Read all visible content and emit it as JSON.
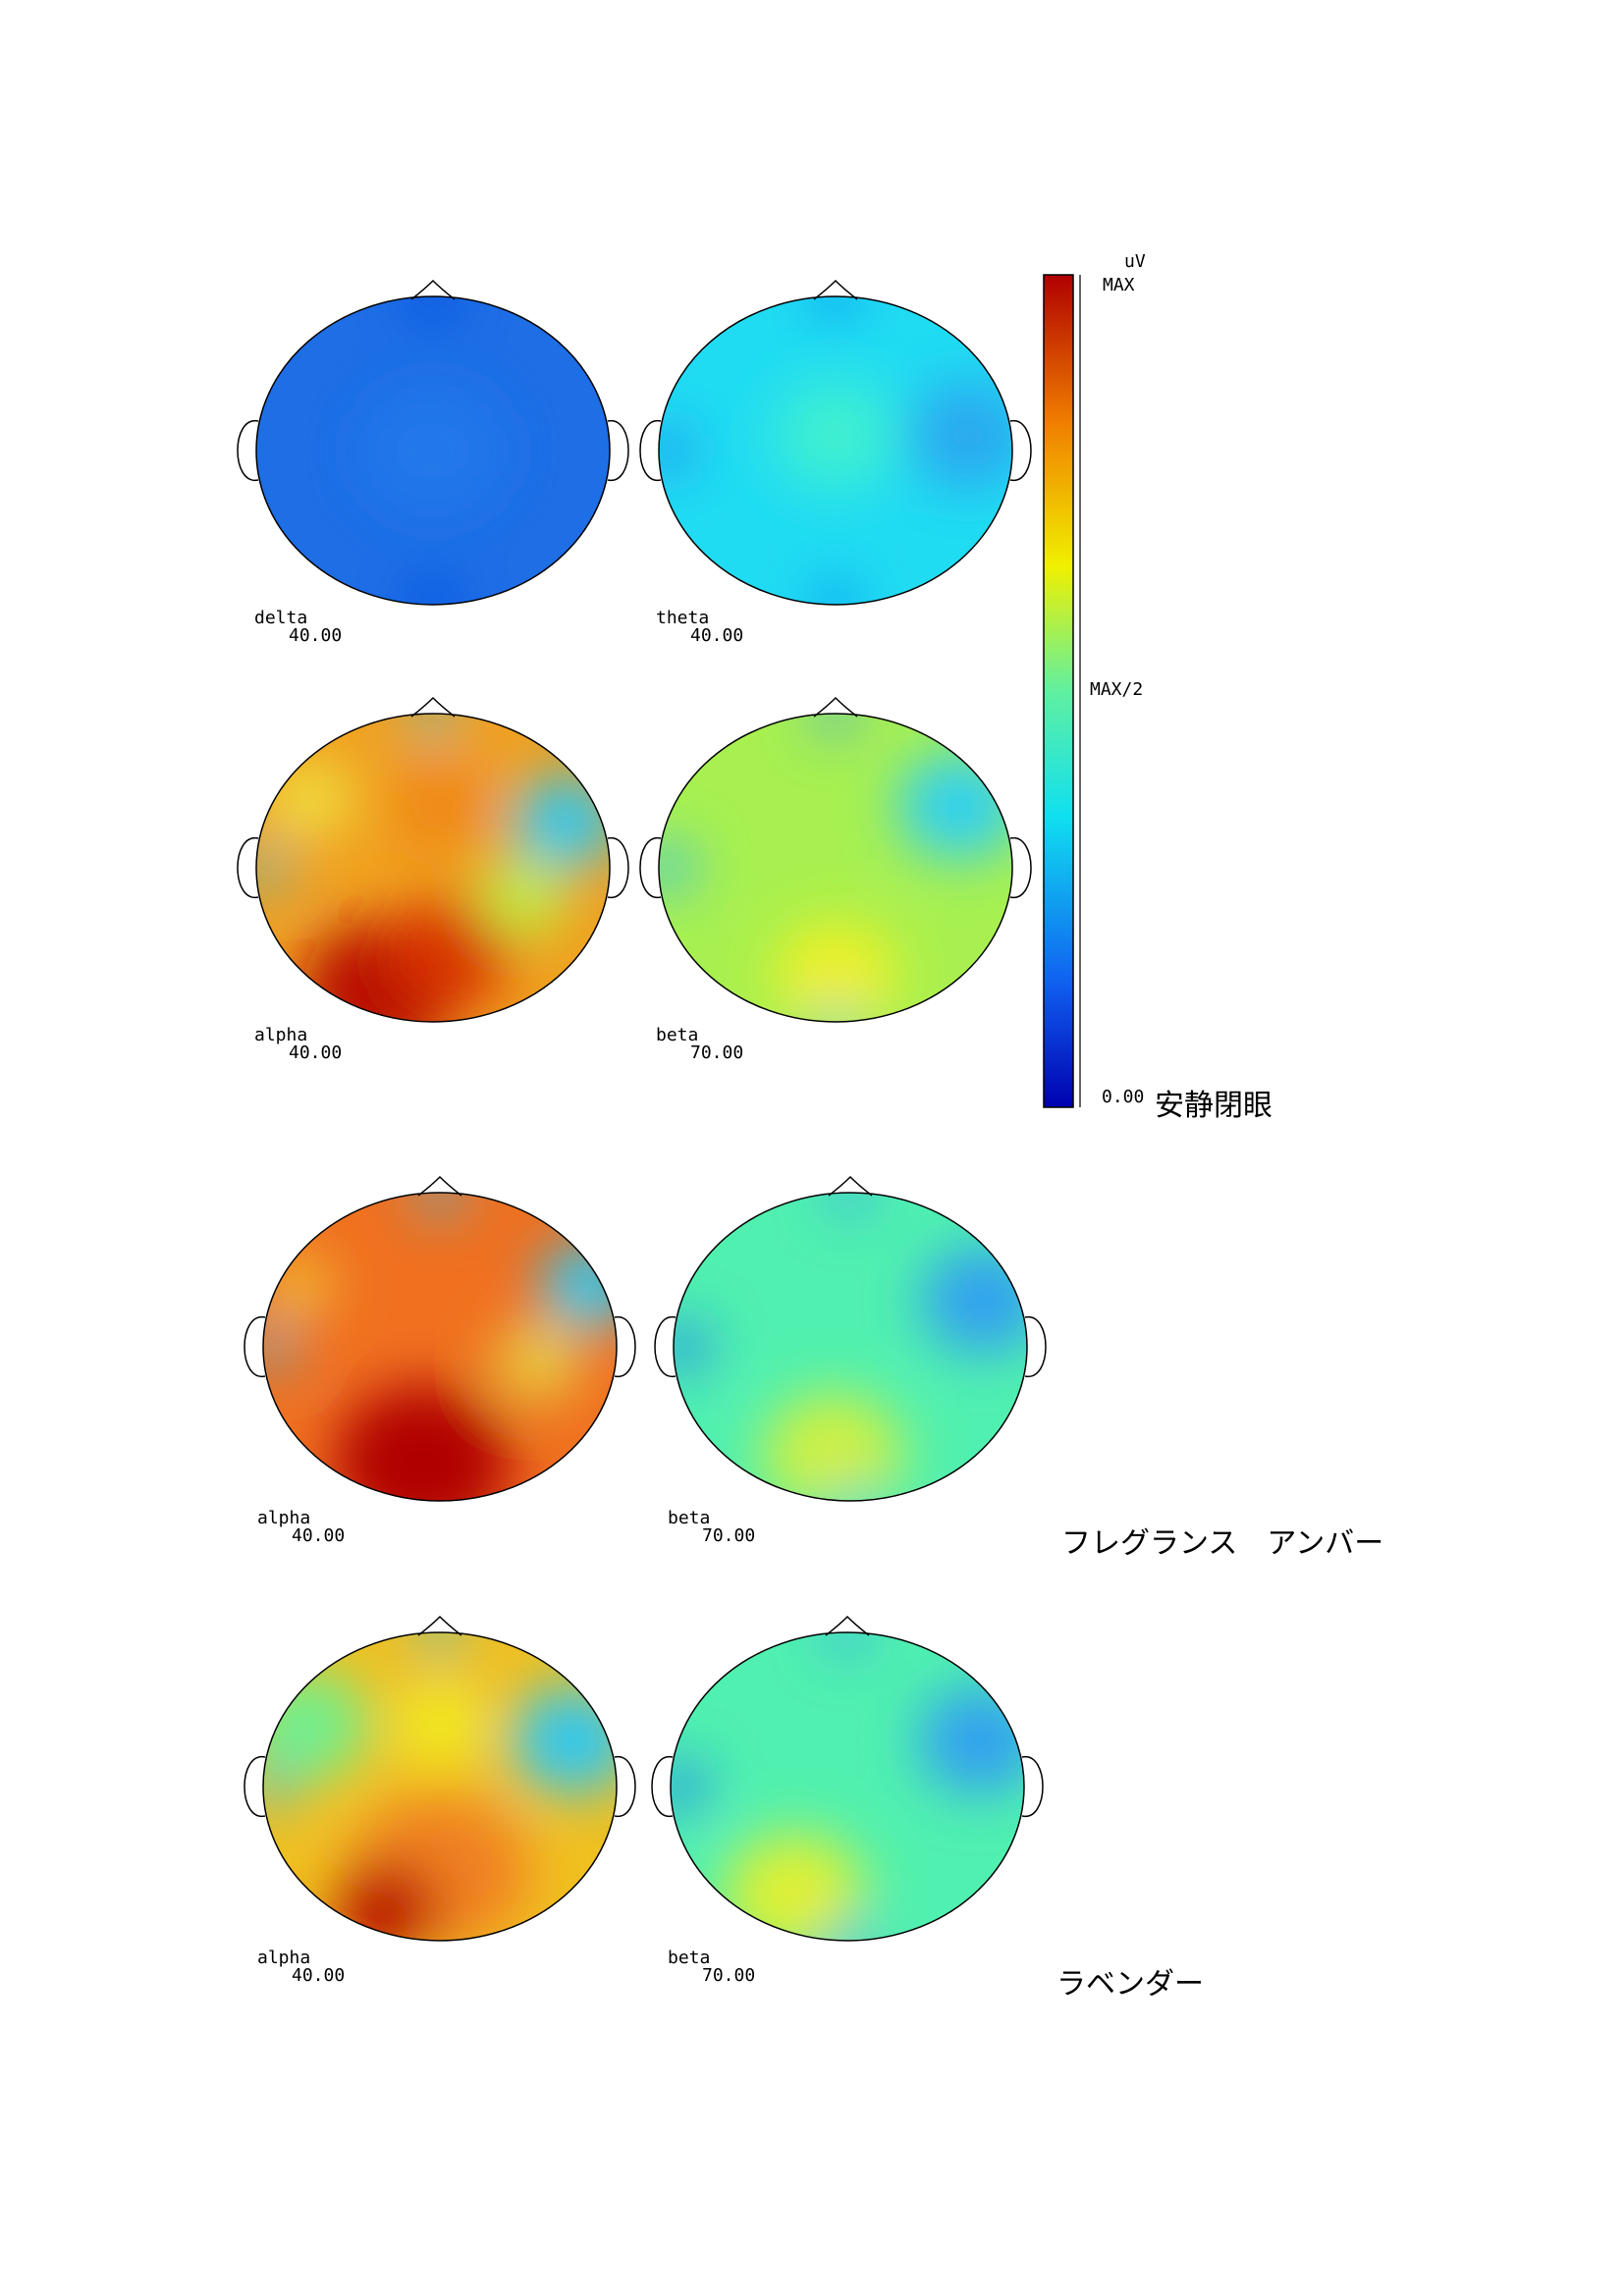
{
  "maps": [
    {
      "band": "delta",
      "scale": "40.00"
    },
    {
      "band": "theta",
      "scale": "40.00"
    },
    {
      "band": "alpha",
      "scale": "40.00"
    },
    {
      "band": "beta",
      "scale": "70.00"
    },
    {
      "band": "alpha",
      "scale": "40.00"
    },
    {
      "band": "beta",
      "scale": "70.00"
    },
    {
      "band": "alpha",
      "scale": "40.00"
    },
    {
      "band": "beta",
      "scale": "70.00"
    }
  ],
  "colorbar": {
    "unit": "uV",
    "max": "MAX",
    "mid": "MAX/2",
    "min": "0.00"
  },
  "conditions": [
    "安静閉眼",
    "フレグランス　アンバー",
    "ラベンダー"
  ]
}
